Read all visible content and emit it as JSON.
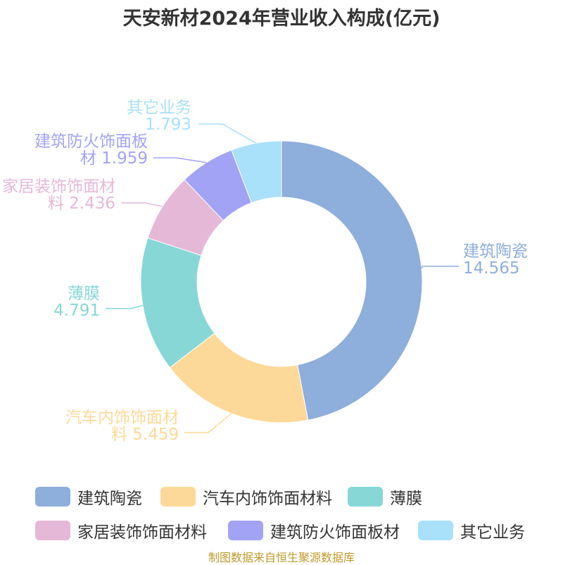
{
  "title": "天安新材2024年营业收入构成(亿元)",
  "source": "制图数据来自恒生聚源数据库",
  "chart_data": {
    "type": "pie",
    "variant": "donut",
    "categories": [
      "建筑陶瓷",
      "汽车内饰饰面材料",
      "薄膜",
      "家居装饰饰面材料",
      "建筑防火饰面板材",
      "其它业务"
    ],
    "values": [
      14.565,
      5.459,
      4.791,
      2.436,
      1.959,
      1.793
    ],
    "colors": [
      "#8eaedb",
      "#fdd999",
      "#87d7d7",
      "#e6b8d8",
      "#a3a3f5",
      "#a9e0fa"
    ],
    "data_labels": [
      [
        "建筑陶瓷",
        "14.565"
      ],
      [
        "汽车内饰饰面材",
        "料 5.459"
      ],
      [
        "薄膜",
        "4.791"
      ],
      [
        "家居装饰饰面材",
        "料 2.436"
      ],
      [
        "建筑防火饰面板",
        "材 1.959"
      ],
      [
        "其它业务",
        "1.793"
      ]
    ],
    "legend_position": "bottom"
  }
}
